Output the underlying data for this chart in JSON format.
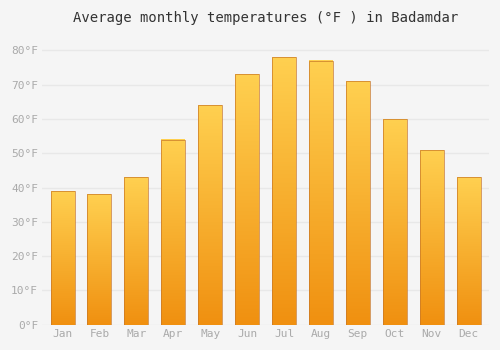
{
  "title": "Average monthly temperatures (°F ) in Badamdar",
  "months": [
    "Jan",
    "Feb",
    "Mar",
    "Apr",
    "May",
    "Jun",
    "Jul",
    "Aug",
    "Sep",
    "Oct",
    "Nov",
    "Dec"
  ],
  "values": [
    39,
    38,
    43,
    54,
    64,
    73,
    78,
    77,
    71,
    60,
    51,
    43
  ],
  "bar_color_main": "#FFA500",
  "bar_color_top": "#FFD050",
  "bar_color_bottom": "#F08000",
  "bar_edge_color": "#C87000",
  "ylabel_ticks": [
    "0°F",
    "10°F",
    "20°F",
    "30°F",
    "40°F",
    "50°F",
    "60°F",
    "70°F",
    "80°F"
  ],
  "ytick_vals": [
    0,
    10,
    20,
    30,
    40,
    50,
    60,
    70,
    80
  ],
  "ylim": [
    0,
    85
  ],
  "background_color": "#f5f5f5",
  "grid_color": "#e8e8e8",
  "title_fontsize": 10,
  "tick_fontsize": 8,
  "tick_color": "#aaaaaa"
}
